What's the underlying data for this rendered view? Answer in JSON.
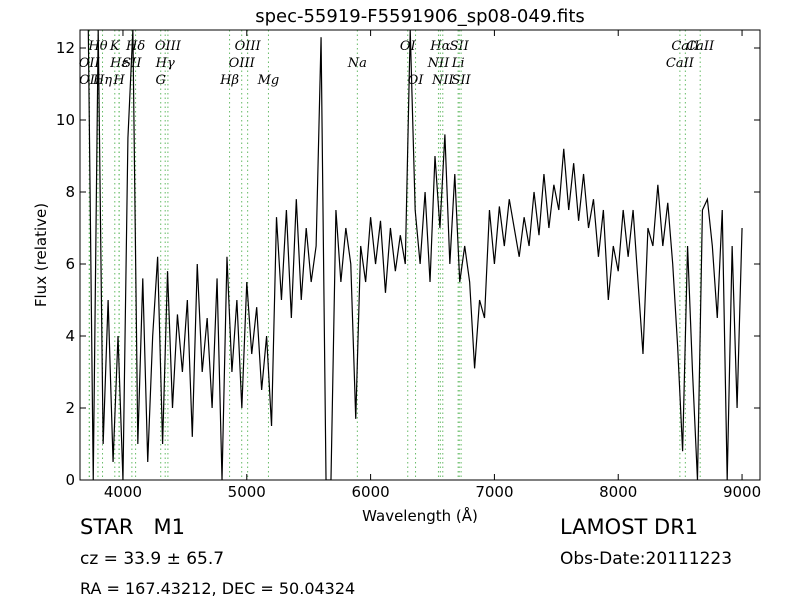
{
  "chart_data": {
    "type": "line",
    "title": "spec-55919-F5591906_sp08-049.fits",
    "x_label": "Wavelength (Å)",
    "y_label": "Flux (relative)",
    "xlim": [
      3653,
      9145
    ],
    "ylim": [
      0,
      12.5
    ],
    "xticks": [
      4000,
      5000,
      6000,
      7000,
      8000,
      9000
    ],
    "yticks": [
      0,
      2,
      4,
      6,
      8,
      10,
      12
    ],
    "color": "#000000",
    "line_color": "#66bb66",
    "x": [
      3720,
      3760,
      3800,
      3840,
      3880,
      3920,
      3960,
      4000,
      4040,
      4080,
      4120,
      4160,
      4200,
      4240,
      4280,
      4320,
      4360,
      4400,
      4440,
      4480,
      4520,
      4560,
      4600,
      4640,
      4680,
      4720,
      4760,
      4800,
      4840,
      4880,
      4920,
      4960,
      5000,
      5040,
      5080,
      5120,
      5160,
      5200,
      5240,
      5280,
      5320,
      5360,
      5400,
      5440,
      5480,
      5520,
      5560,
      5600,
      5640,
      5680,
      5720,
      5760,
      5800,
      5840,
      5880,
      5920,
      5960,
      6000,
      6040,
      6080,
      6120,
      6160,
      6200,
      6240,
      6280,
      6320,
      6360,
      6400,
      6440,
      6480,
      6520,
      6560,
      6600,
      6640,
      6680,
      6720,
      6760,
      6800,
      6840,
      6880,
      6920,
      6960,
      7000,
      7040,
      7080,
      7120,
      7160,
      7200,
      7240,
      7280,
      7320,
      7360,
      7400,
      7440,
      7480,
      7520,
      7560,
      7600,
      7640,
      7680,
      7720,
      7760,
      7800,
      7840,
      7880,
      7920,
      7960,
      8000,
      8040,
      8080,
      8120,
      8160,
      8200,
      8240,
      8280,
      8320,
      8360,
      8400,
      8440,
      8480,
      8520,
      8560,
      8600,
      8640,
      8680,
      8720,
      8760,
      8800,
      8840,
      8880,
      8920,
      8960,
      9000
    ],
    "values": [
      12.5,
      0,
      12.5,
      1,
      5,
      0.5,
      4,
      0,
      9.5,
      12.5,
      1,
      5.6,
      0.5,
      4,
      6.2,
      1,
      5.8,
      2,
      4.6,
      3,
      5,
      1.2,
      6,
      3,
      4.5,
      2,
      5.6,
      0,
      6.2,
      3,
      5,
      2,
      5.5,
      3.5,
      4.8,
      2.5,
      4,
      1.5,
      7.3,
      5,
      7.5,
      4.5,
      7.8,
      5,
      7,
      5.5,
      6.5,
      12.3,
      0,
      0,
      7.5,
      5.5,
      7,
      6,
      1.7,
      6.5,
      5.5,
      7.3,
      6,
      7.2,
      5.2,
      7,
      5.8,
      6.8,
      6,
      12.5,
      7.5,
      6,
      8,
      5.5,
      9,
      7,
      9.6,
      6,
      8.5,
      5.5,
      6.5,
      5.5,
      3.1,
      5,
      4.5,
      7.5,
      6,
      7.6,
      6.5,
      7.8,
      7,
      6.2,
      7.3,
      6.5,
      8,
      6.8,
      8.5,
      7,
      8.2,
      7.5,
      9.2,
      7.5,
      8.8,
      7.2,
      8.5,
      7,
      7.8,
      6.2,
      7.5,
      5,
      6.5,
      5.8,
      7.5,
      6.2,
      7.5,
      5.5,
      3.5,
      7,
      6.5,
      8.2,
      6.5,
      7.7,
      6,
      3.7,
      0.8,
      6.5,
      3,
      0,
      7.5,
      7.8,
      6.5,
      4.5,
      7.5,
      0,
      6.5,
      2,
      7
    ],
    "lines": [
      {
        "label": "Hθ",
        "x": 3798
      },
      {
        "label": "OII",
        "x": 3727
      },
      {
        "label": "OII",
        "x": 3730
      },
      {
        "label": "K",
        "x": 3934
      },
      {
        "label": "Hε",
        "x": 3970
      },
      {
        "label": "Hη",
        "x": 3835
      },
      {
        "label": "Hδ",
        "x": 4102
      },
      {
        "label": "SII",
        "x": 4072
      },
      {
        "label": "H",
        "x": 3968
      },
      {
        "label": "OIII",
        "x": 4363
      },
      {
        "label": "Hγ",
        "x": 4341
      },
      {
        "label": "G",
        "x": 4305
      },
      {
        "label": "OIII",
        "x": 5007
      },
      {
        "label": "OIII",
        "x": 4959
      },
      {
        "label": "Hβ",
        "x": 4861
      },
      {
        "label": "OI",
        "x": 6300
      },
      {
        "label": "Na",
        "x": 5893
      },
      {
        "label": "Mg",
        "x": 5175
      },
      {
        "label": "Hα",
        "x": 6563
      },
      {
        "label": "NII",
        "x": 6548
      },
      {
        "label": "OI",
        "x": 6363
      },
      {
        "label": "SII",
        "x": 6716
      },
      {
        "label": "Li",
        "x": 6707
      },
      {
        "label": "NII",
        "x": 6583
      },
      {
        "label": "CaII",
        "x": 8542
      },
      {
        "label": "CaII",
        "x": 8498
      },
      {
        "label": "SII",
        "x": 6731
      },
      {
        "label": "CaII",
        "x": 8662
      }
    ],
    "object_class": "STAR   M1",
    "redshift": "cz = 33.9 ± 65.7",
    "coordinates": "RA = 167.43212, DEC = 50.04324",
    "survey": "LAMOST DR1",
    "obs_date": "Obs-Date:20111223"
  }
}
